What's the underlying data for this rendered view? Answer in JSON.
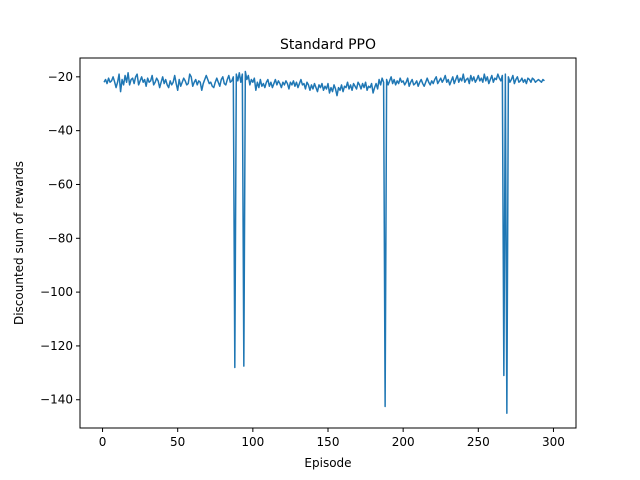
{
  "chart_data": {
    "type": "line",
    "title": "Standard PPO",
    "xlabel": "Episode",
    "ylabel": "Discounted sum of rewards",
    "xlim": [
      -15,
      315
    ],
    "ylim": [
      -150.5,
      -13
    ],
    "xticks": [
      0,
      50,
      100,
      150,
      200,
      250,
      300
    ],
    "yticks": [
      -20,
      -40,
      -60,
      -80,
      -100,
      -120,
      -140
    ],
    "grid": false,
    "series": [
      {
        "color": "#1f77b4",
        "x_start": 1,
        "x_step": 1,
        "values": [
          -22.0,
          -21.0,
          -22.5,
          -20.5,
          -22.0,
          -21.5,
          -20.0,
          -21.8,
          -24.0,
          -22.0,
          -19.0,
          -25.5,
          -21.0,
          -23.0,
          -19.5,
          -22.0,
          -18.5,
          -23.0,
          -21.0,
          -20.5,
          -22.5,
          -20.0,
          -19.0,
          -23.0,
          -21.5,
          -20.0,
          -22.0,
          -21.0,
          -23.5,
          -20.5,
          -22.0,
          -21.5,
          -19.5,
          -23.0,
          -22.0,
          -20.5,
          -21.5,
          -24.0,
          -22.0,
          -20.0,
          -22.5,
          -21.0,
          -23.0,
          -24.0,
          -21.5,
          -23.0,
          -22.0,
          -19.5,
          -22.5,
          -25.0,
          -21.0,
          -23.5,
          -22.0,
          -20.5,
          -21.5,
          -23.0,
          -22.5,
          -19.0,
          -20.0,
          -23.5,
          -22.0,
          -21.0,
          -23.0,
          -21.5,
          -22.0,
          -25.0,
          -22.5,
          -21.0,
          -19.5,
          -21.0,
          -22.5,
          -22.0,
          -23.5,
          -24.0,
          -22.0,
          -20.5,
          -22.0,
          -23.5,
          -21.0,
          -20.0,
          -22.5,
          -23.0,
          -21.0,
          -19.5,
          -22.0,
          -21.5,
          -20.0,
          -128.0,
          -19.0,
          -21.5,
          -18.5,
          -22.0,
          -19.0,
          -127.5,
          -18.0,
          -21.0,
          -19.5,
          -23.0,
          -21.0,
          -22.0,
          -20.5,
          -25.0,
          -22.0,
          -24.0,
          -21.0,
          -23.5,
          -22.5,
          -24.0,
          -22.0,
          -21.0,
          -23.5,
          -22.0,
          -24.0,
          -22.5,
          -21.0,
          -23.0,
          -21.5,
          -22.5,
          -24.0,
          -22.0,
          -23.0,
          -21.5,
          -22.5,
          -24.5,
          -22.0,
          -23.0,
          -21.5,
          -23.5,
          -22.0,
          -24.0,
          -22.5,
          -21.0,
          -23.0,
          -22.5,
          -24.5,
          -22.0,
          -23.0,
          -25.0,
          -23.0,
          -24.5,
          -22.5,
          -24.0,
          -25.5,
          -23.0,
          -24.0,
          -22.5,
          -25.0,
          -23.5,
          -24.5,
          -22.5,
          -26.0,
          -24.0,
          -25.5,
          -23.0,
          -24.5,
          -27.0,
          -24.0,
          -25.0,
          -23.0,
          -25.5,
          -23.5,
          -24.0,
          -22.0,
          -24.5,
          -23.0,
          -25.0,
          -22.5,
          -23.5,
          -24.5,
          -22.0,
          -23.0,
          -24.5,
          -22.5,
          -24.0,
          -22.0,
          -25.0,
          -23.5,
          -24.0,
          -22.5,
          -26.0,
          -24.0,
          -22.5,
          -24.5,
          -21.0,
          -23.0,
          -20.5,
          -22.0,
          -142.5,
          -21.0,
          -23.0,
          -21.5,
          -20.0,
          -22.5,
          -21.0,
          -23.0,
          -21.5,
          -22.5,
          -20.5,
          -22.0,
          -21.5,
          -23.0,
          -22.0,
          -20.5,
          -23.5,
          -22.0,
          -21.0,
          -23.0,
          -22.5,
          -21.5,
          -23.5,
          -22.0,
          -21.0,
          -22.5,
          -23.5,
          -22.0,
          -20.5,
          -22.0,
          -23.0,
          -21.5,
          -22.5,
          -21.0,
          -20.0,
          -22.5,
          -21.5,
          -20.5,
          -22.0,
          -21.0,
          -19.5,
          -22.0,
          -21.0,
          -23.0,
          -21.5,
          -20.0,
          -22.5,
          -21.0,
          -19.5,
          -22.0,
          -20.5,
          -21.5,
          -19.0,
          -22.0,
          -21.0,
          -20.5,
          -22.5,
          -19.5,
          -21.5,
          -20.0,
          -22.0,
          -21.0,
          -19.5,
          -21.5,
          -20.5,
          -22.0,
          -19.0,
          -21.5,
          -20.0,
          -22.5,
          -21.0,
          -19.5,
          -22.0,
          -20.5,
          -21.0,
          -19.0,
          -20.5,
          -21.5,
          -19.5,
          -131.0,
          -19.0,
          -145.0,
          -20.0,
          -22.0,
          -21.0,
          -19.5,
          -22.5,
          -21.0,
          -20.0,
          -22.0,
          -21.5,
          -20.5,
          -22.0,
          -21.0,
          -22.5,
          -20.5,
          -21.0,
          -22.0,
          -20.5,
          -21.0,
          -22.0,
          -21.5,
          -21.0,
          -21.5,
          -22.0,
          -21.0,
          -21.5
        ]
      }
    ]
  }
}
